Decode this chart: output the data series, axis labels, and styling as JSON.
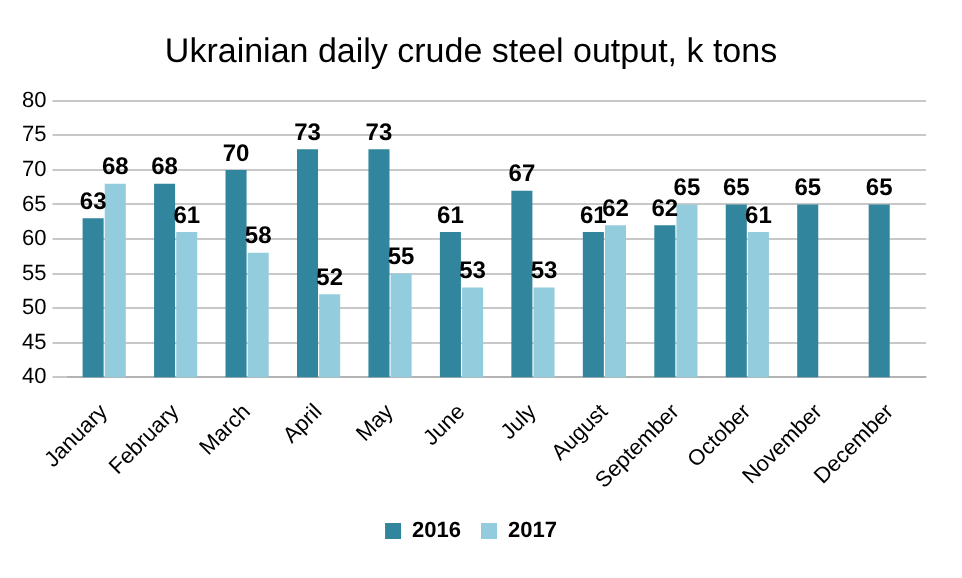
{
  "chart_data": {
    "type": "bar",
    "title": "Ukrainian daily crude steel output, k tons",
    "categories": [
      "January",
      "February",
      "March",
      "April",
      "May",
      "June",
      "July",
      "August",
      "September",
      "October",
      "November",
      "December"
    ],
    "series": [
      {
        "name": "2016",
        "color": "#31859c",
        "values": [
          63,
          68,
          70,
          73,
          73,
          61,
          67,
          61,
          62,
          65,
          65,
          65
        ]
      },
      {
        "name": "2017",
        "color": "#93cddd",
        "values": [
          68,
          61,
          58,
          52,
          55,
          53,
          53,
          62,
          65,
          61,
          null,
          null
        ]
      }
    ],
    "ylim": [
      40,
      80
    ],
    "yticks": [
      40,
      45,
      50,
      55,
      60,
      65,
      70,
      75,
      80
    ],
    "grid": "y",
    "legend": "bottom",
    "data_labels": true
  }
}
